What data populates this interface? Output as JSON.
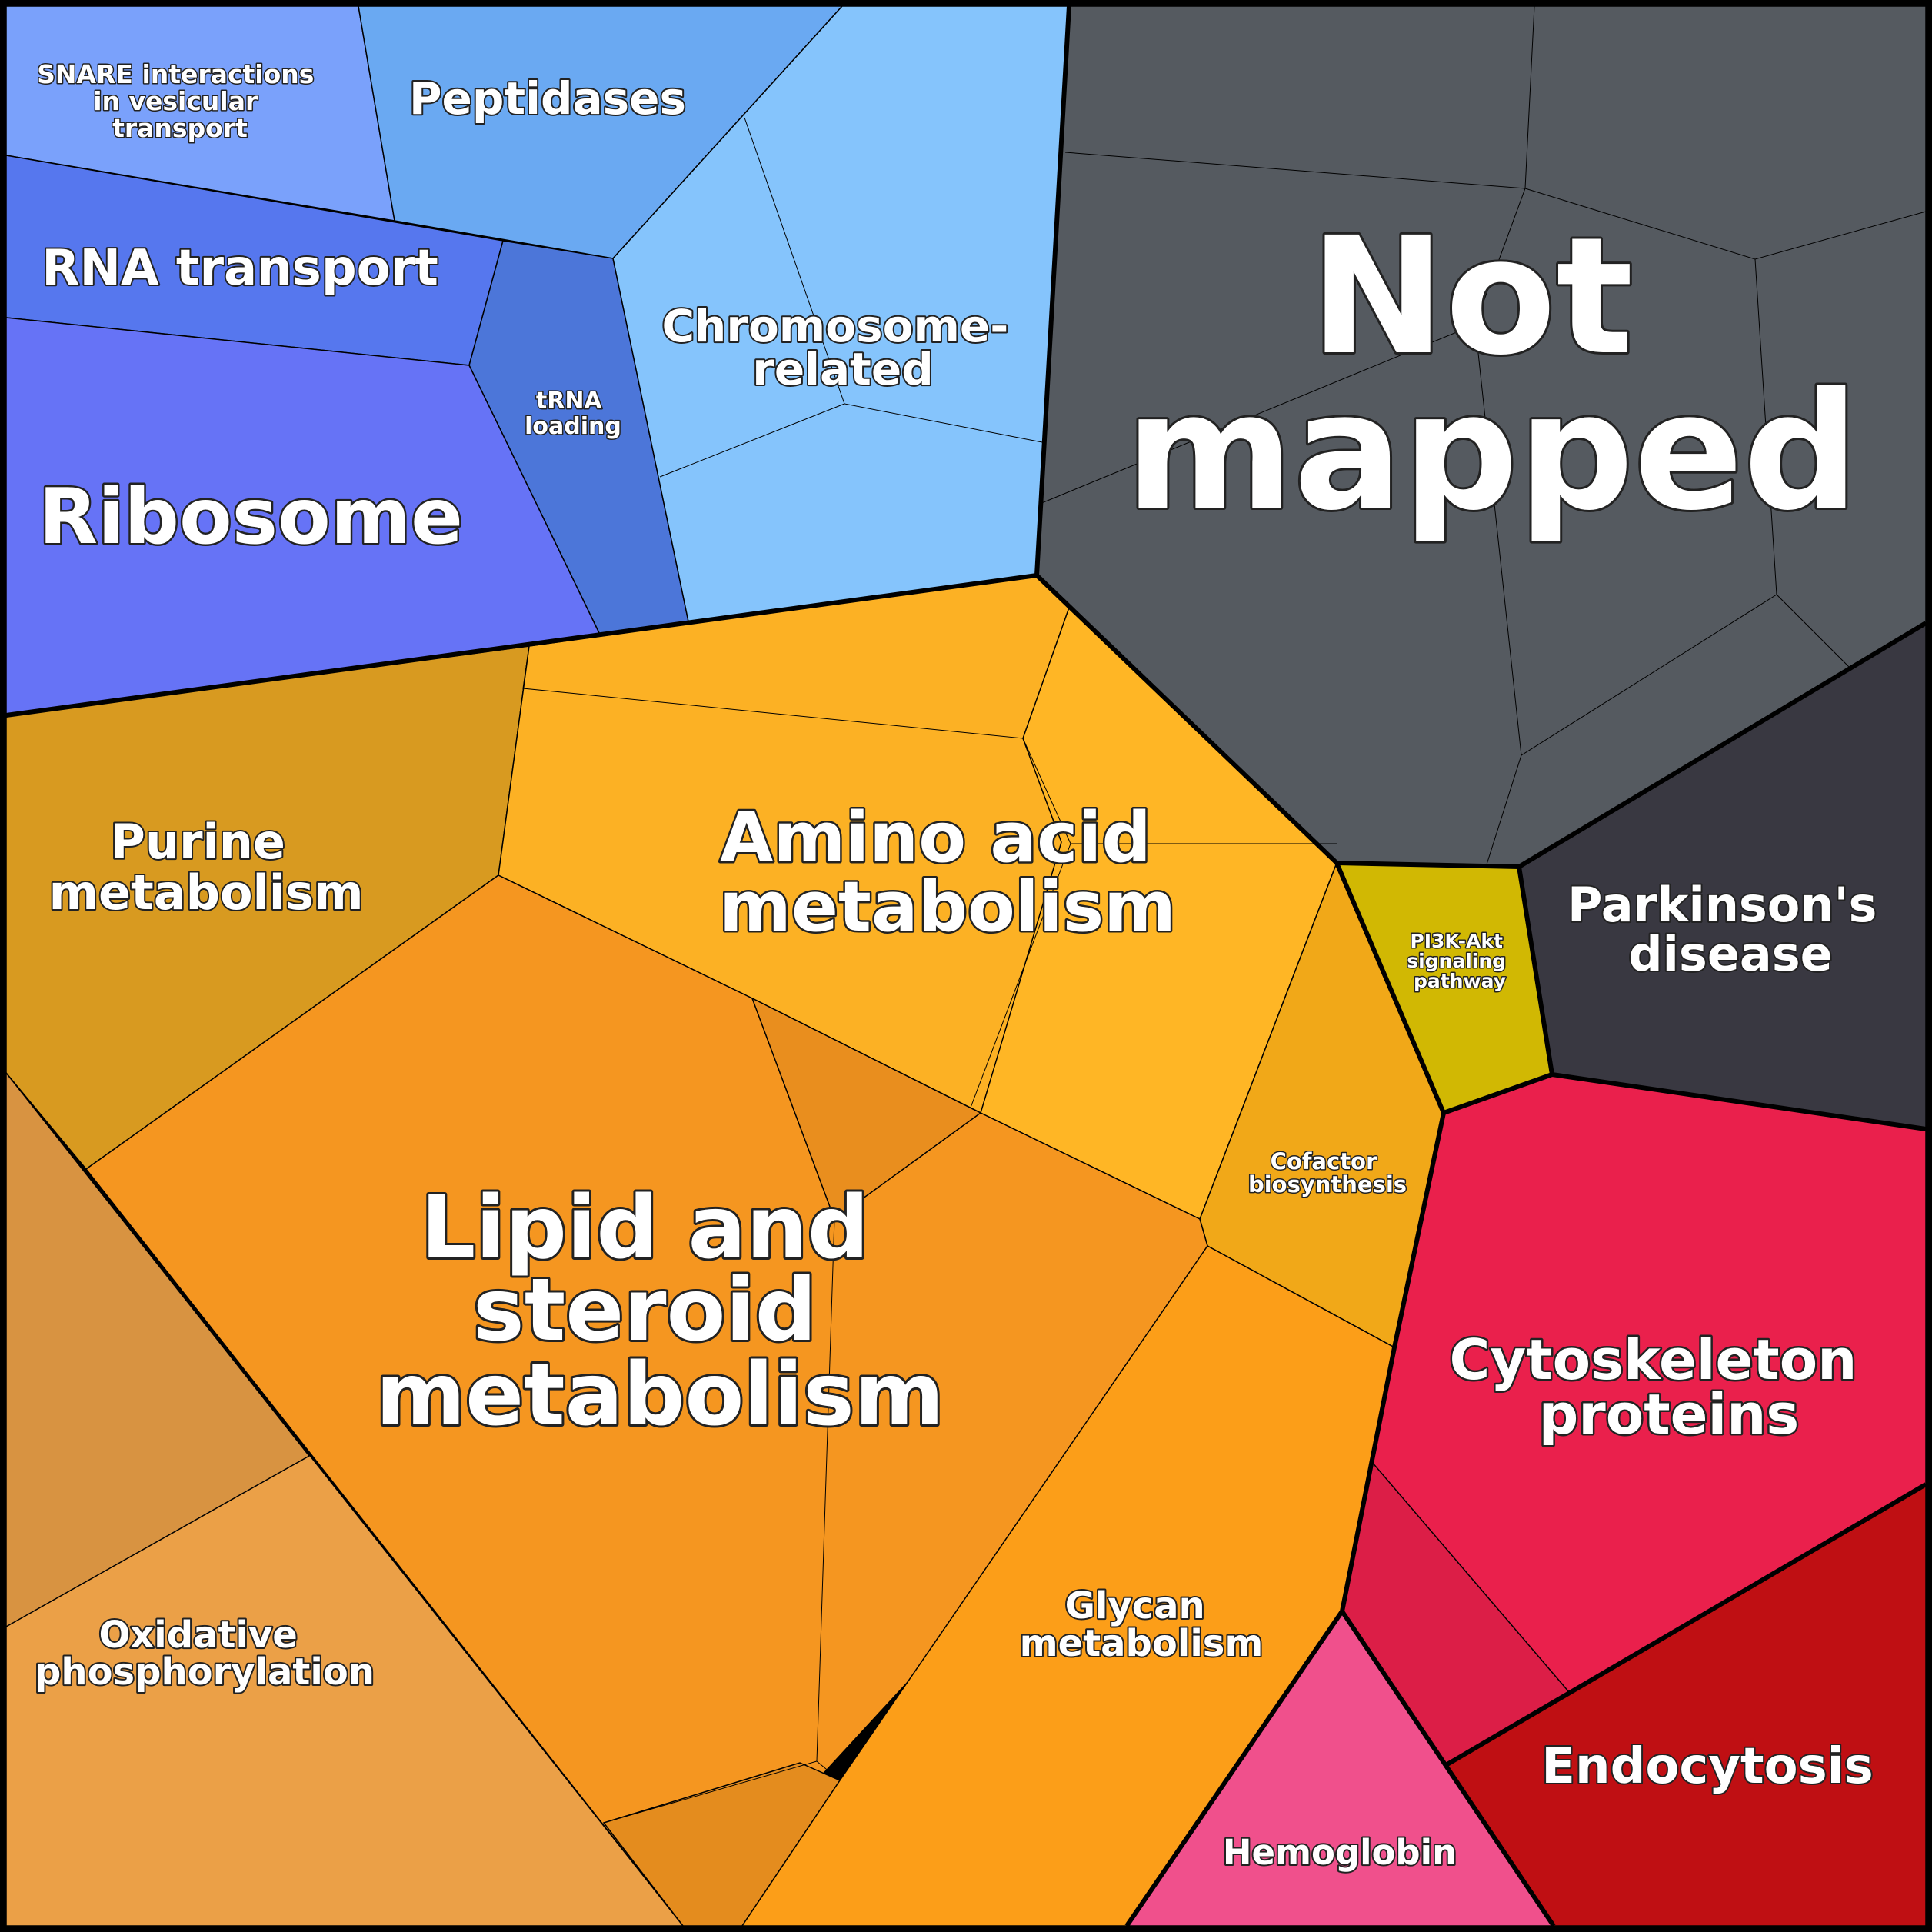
{
  "regions": {
    "snare": {
      "label": [
        "SNARE interactions",
        "in vesicular",
        "transport"
      ],
      "color": "#7aa1fb"
    },
    "peptidases": {
      "label": [
        "Peptidases"
      ],
      "color": "#6aa9f2"
    },
    "rna_transport": {
      "label": [
        "RNA transport"
      ],
      "color": "#5677ee"
    },
    "trna_loading": {
      "label": [
        "tRNA",
        "loading"
      ],
      "color": "#4c76d9"
    },
    "ribosome": {
      "label": [
        "Ribosome"
      ],
      "color": "#6673f6"
    },
    "chromosome": {
      "label": [
        "Chromosome-",
        "related"
      ],
      "color": "#85c4fc"
    },
    "not_mapped": {
      "label": [
        "Not",
        "mapped"
      ],
      "color": "#555a60"
    },
    "parkinsons": {
      "label": [
        "Parkinson's",
        "disease"
      ],
      "color": "#393841"
    },
    "pi3k": {
      "label": [
        "PI3K-Akt",
        "signaling",
        "pathway"
      ],
      "color": "#d1b803"
    },
    "purine": {
      "label": [
        "Purine",
        "metabolism"
      ],
      "color": "#d89a20"
    },
    "amino_acid": {
      "label": [
        "Amino acid",
        "metabolism"
      ],
      "color": "#fcb124"
    },
    "cofactor": {
      "label": [
        "Cofactor",
        "biosynthesis"
      ],
      "color": "#f1a818"
    },
    "lipid": {
      "label": [
        "Lipid and",
        "steroid",
        "metabolism"
      ],
      "color": "#f59620"
    },
    "oxidative": {
      "label": [
        "Oxidative",
        "phosphorylation"
      ],
      "color": "#eba047"
    },
    "glycan": {
      "label": [
        "Glycan",
        "metabolism"
      ],
      "color": "#fc9e18"
    },
    "cytoskeleton": {
      "label": [
        "Cytoskeleton",
        "proteins"
      ],
      "color": "#ea204c"
    },
    "endocytosis": {
      "label": [
        "Endocytosis"
      ],
      "color": "#bf0f13"
    },
    "hemoglobin": {
      "label": [
        "Hemoglobin"
      ],
      "color": "#f0508c"
    }
  }
}
